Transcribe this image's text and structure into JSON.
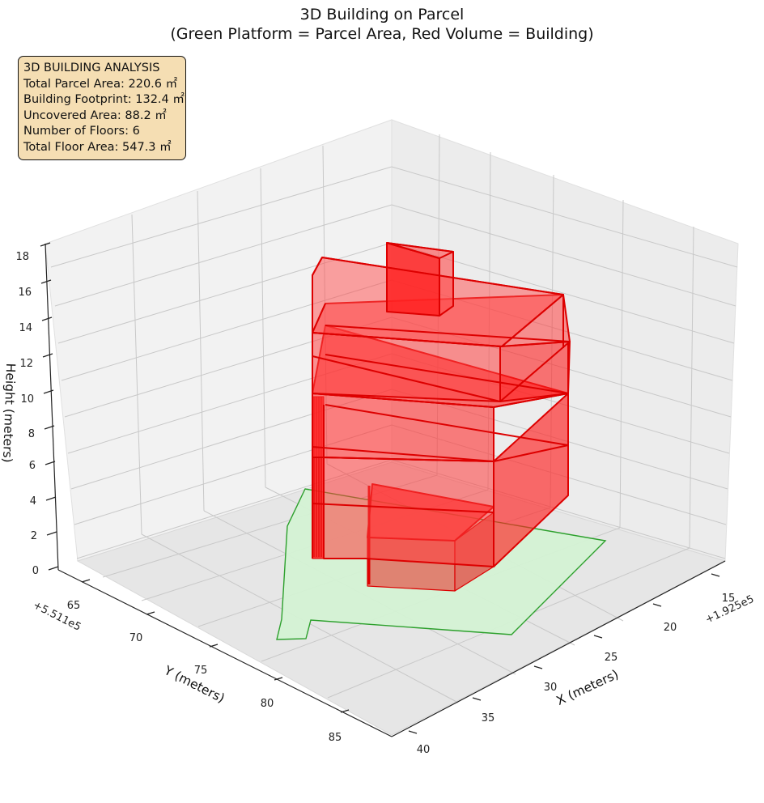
{
  "title": {
    "line1": "3D Building on Parcel",
    "line2": "(Green Platform = Parcel Area, Red Volume = Building)"
  },
  "info_box": {
    "heading": "3D BUILDING ANALYSIS",
    "parcel_area": "Total Parcel Area: 220.6 ㎡",
    "footprint": "Building Footprint: 132.4 ㎡",
    "uncovered": "Uncovered Area: 88.2 ㎡",
    "floors": "Number of Floors: 6",
    "floor_area": "Total Floor Area: 547.3 ㎡"
  },
  "axes": {
    "x_label": "X (meters)",
    "y_label": "Y (meters)",
    "z_label": "Height (meters)",
    "x_offset": "+1.925e5",
    "y_offset": "+5.511e5",
    "x_ticks": [
      "15",
      "20",
      "25",
      "30",
      "35",
      "40"
    ],
    "y_ticks": [
      "65",
      "70",
      "75",
      "80",
      "85"
    ],
    "z_ticks": [
      "0",
      "2",
      "4",
      "6",
      "8",
      "10",
      "12",
      "14",
      "16",
      "18"
    ]
  },
  "colors": {
    "parcel_fill": "#d4f2d4",
    "parcel_edge": "#2ca02c",
    "building_fill": "#ff0000",
    "building_edge": "#dd0000",
    "info_box_bg": "#f5deb3"
  },
  "chart_data": {
    "type": "3d-extruded-polygons",
    "title": "3D Building on Parcel",
    "subtitle": "(Green Platform = Parcel Area, Red Volume = Building)",
    "xlabel": "X (meters)",
    "ylabel": "Y (meters)",
    "zlabel": "Height (meters)",
    "x_offset": 192500,
    "y_offset": 551100,
    "zlim": [
      0,
      18
    ],
    "grid": true,
    "legend": "none",
    "parcel": {
      "name": "Parcel Area",
      "area_m2": 220.6,
      "z": 0
    },
    "building": {
      "name": "Building",
      "footprint_m2": 132.4,
      "floors": 6,
      "total_floor_area_m2": 547.3,
      "approx_max_height_m": 17
    },
    "uncovered_area_m2": 88.2
  }
}
